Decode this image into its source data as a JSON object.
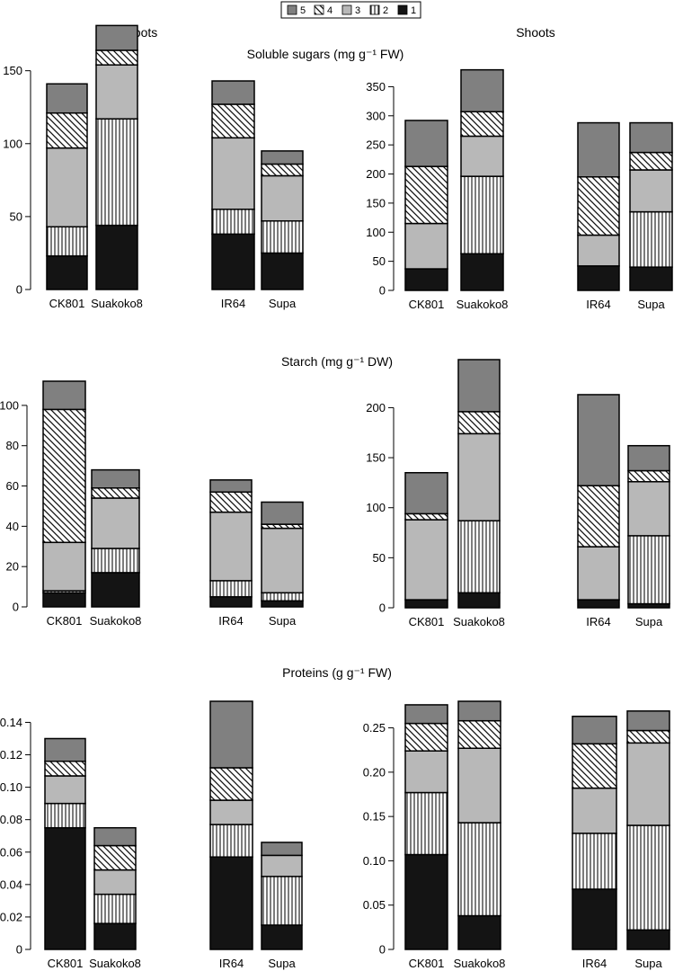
{
  "legend": [
    {
      "id": "5",
      "label": "5",
      "fill": "#808080"
    },
    {
      "id": "4",
      "label": "4",
      "fill": "hatch"
    },
    {
      "id": "3",
      "label": "3",
      "fill": "#b8b8b8"
    },
    {
      "id": "2",
      "label": "2",
      "fill": "vlines"
    },
    {
      "id": "1",
      "label": "1",
      "fill": "#141414"
    }
  ],
  "column_titles": {
    "left": "Roots",
    "right": "Shoots"
  },
  "chart_data": [
    {
      "type": "bar",
      "stacked": true,
      "section": "Soluble sugars",
      "panel": "Roots",
      "title": "Soluble sugars (mg g⁻¹ FW)",
      "ylim": [
        0,
        180
      ],
      "yticks": [
        0,
        50,
        100,
        150
      ],
      "categories": [
        "CK801",
        "Suakoko8",
        "IR64",
        "Supa"
      ],
      "series": [
        {
          "name": "1",
          "values": [
            23,
            44,
            38,
            25
          ]
        },
        {
          "name": "2",
          "values": [
            20,
            73,
            17,
            22
          ]
        },
        {
          "name": "3",
          "values": [
            54,
            37,
            49,
            31
          ]
        },
        {
          "name": "4",
          "values": [
            24,
            10,
            23,
            8
          ]
        },
        {
          "name": "5",
          "values": [
            20,
            17,
            16,
            9
          ]
        }
      ]
    },
    {
      "type": "bar",
      "stacked": true,
      "section": "Soluble sugars",
      "panel": "Shoots",
      "ylim": [
        0,
        380
      ],
      "yticks": [
        0,
        50,
        100,
        150,
        200,
        250,
        300,
        350
      ],
      "categories": [
        "CK801",
        "Suakoko8",
        "IR64",
        "Supa"
      ],
      "series": [
        {
          "name": "1",
          "values": [
            37,
            63,
            42,
            40
          ]
        },
        {
          "name": "2",
          "values": [
            0,
            133,
            0,
            95
          ]
        },
        {
          "name": "3",
          "values": [
            78,
            69,
            53,
            72
          ]
        },
        {
          "name": "4",
          "values": [
            98,
            42,
            100,
            30
          ]
        },
        {
          "name": "5",
          "values": [
            79,
            72,
            93,
            51
          ]
        }
      ]
    },
    {
      "type": "bar",
      "stacked": true,
      "section": "Starch",
      "panel": "Roots",
      "title": "Starch (mg g⁻¹ DW)",
      "ylim": [
        0,
        112
      ],
      "yticks": [
        0,
        20,
        40,
        60,
        80,
        100
      ],
      "categories": [
        "CK801",
        "Suakoko8",
        "IR64",
        "Supa"
      ],
      "series": [
        {
          "name": "1",
          "values": [
            7,
            17,
            5,
            3
          ]
        },
        {
          "name": "2",
          "values": [
            1,
            12,
            8,
            4
          ]
        },
        {
          "name": "3",
          "values": [
            24,
            25,
            34,
            32
          ]
        },
        {
          "name": "4",
          "values": [
            66,
            5,
            10,
            2
          ]
        },
        {
          "name": "5",
          "values": [
            14,
            9,
            6,
            11
          ]
        }
      ]
    },
    {
      "type": "bar",
      "stacked": true,
      "section": "Starch",
      "panel": "Shoots",
      "ylim": [
        0,
        248
      ],
      "yticks": [
        0,
        50,
        100,
        150,
        200
      ],
      "categories": [
        "CK801",
        "Suakoko8",
        "IR64",
        "Supa"
      ],
      "series": [
        {
          "name": "1",
          "values": [
            8,
            15,
            8,
            4
          ]
        },
        {
          "name": "2",
          "values": [
            0,
            72,
            0,
            68
          ]
        },
        {
          "name": "3",
          "values": [
            80,
            87,
            53,
            54
          ]
        },
        {
          "name": "4",
          "values": [
            6,
            22,
            61,
            11
          ]
        },
        {
          "name": "5",
          "values": [
            41,
            52,
            91,
            25
          ]
        }
      ]
    },
    {
      "type": "bar",
      "stacked": true,
      "section": "Proteins",
      "panel": "Roots",
      "title": "Proteins (g g⁻¹ FW)",
      "ylim": [
        0,
        0.153
      ],
      "yticks": [
        0,
        0.02,
        0.04,
        0.06,
        0.08,
        0.1,
        0.12,
        0.14
      ],
      "categories": [
        "CK801",
        "Suakoko8",
        "IR64",
        "Supa"
      ],
      "series": [
        {
          "name": "1",
          "values": [
            0.075,
            0.016,
            0.057,
            0.015
          ]
        },
        {
          "name": "2",
          "values": [
            0.015,
            0.018,
            0.02,
            0.03
          ]
        },
        {
          "name": "3",
          "values": [
            0.017,
            0.015,
            0.015,
            0.013
          ]
        },
        {
          "name": "4",
          "values": [
            0.009,
            0.015,
            0.02,
            0
          ]
        },
        {
          "name": "5",
          "values": [
            0.014,
            0.011,
            0.041,
            0.008
          ]
        }
      ]
    },
    {
      "type": "bar",
      "stacked": true,
      "section": "Proteins",
      "panel": "Shoots",
      "ylim": [
        0,
        0.28
      ],
      "yticks": [
        0,
        0.05,
        0.1,
        0.15,
        0.2,
        0.25
      ],
      "categories": [
        "CK801",
        "Suakoko8",
        "IR64",
        "Supa"
      ],
      "series": [
        {
          "name": "1",
          "values": [
            0.107,
            0.038,
            0.068,
            0.022
          ]
        },
        {
          "name": "2",
          "values": [
            0.07,
            0.105,
            0.063,
            0.118
          ]
        },
        {
          "name": "3",
          "values": [
            0.047,
            0.084,
            0.051,
            0.093
          ]
        },
        {
          "name": "4",
          "values": [
            0.031,
            0.031,
            0.05,
            0.014
          ]
        },
        {
          "name": "5",
          "values": [
            0.021,
            0.022,
            0.031,
            0.022
          ]
        }
      ]
    }
  ]
}
